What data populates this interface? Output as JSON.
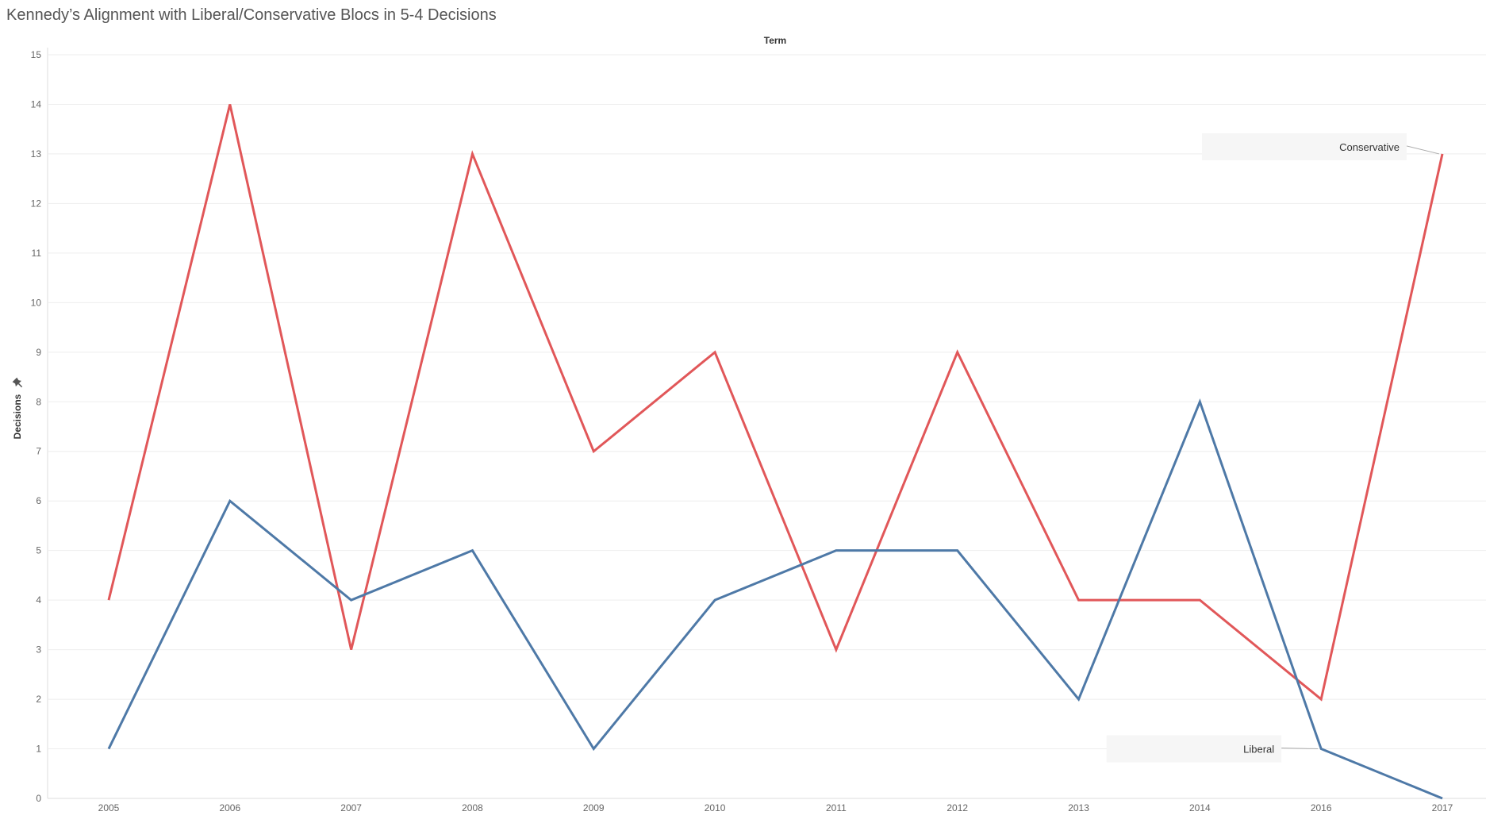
{
  "chart_data": {
    "type": "line",
    "title": "Kennedy’s Alignment with Liberal/Conservative Blocs in 5-4 Decisions",
    "column_header": "Term",
    "ylabel": "Decisions",
    "ylim": [
      0,
      15
    ],
    "yticks": [
      "0",
      "1",
      "2",
      "3",
      "4",
      "5",
      "6",
      "7",
      "8",
      "9",
      "10",
      "11",
      "12",
      "13",
      "14",
      "15"
    ],
    "categories": [
      "2005",
      "2006",
      "2007",
      "2008",
      "2009",
      "2010",
      "2011",
      "2012",
      "2013",
      "2014",
      "2016",
      "2017"
    ],
    "series": [
      {
        "name": "Conservative",
        "color": "#e15759",
        "values": [
          4,
          14,
          3,
          13,
          7,
          9,
          3,
          9,
          4,
          4,
          2,
          13
        ]
      },
      {
        "name": "Liberal",
        "color": "#4e79a7",
        "values": [
          1,
          6,
          4,
          5,
          1,
          4,
          5,
          5,
          2,
          8,
          1,
          0
        ]
      }
    ],
    "grid": true,
    "legend": "none",
    "annotations": [
      {
        "text": "Conservative",
        "series": "Conservative",
        "category": "2017"
      },
      {
        "text": "Liberal",
        "series": "Liberal",
        "category": "2016"
      }
    ],
    "icon": "pin-icon"
  }
}
